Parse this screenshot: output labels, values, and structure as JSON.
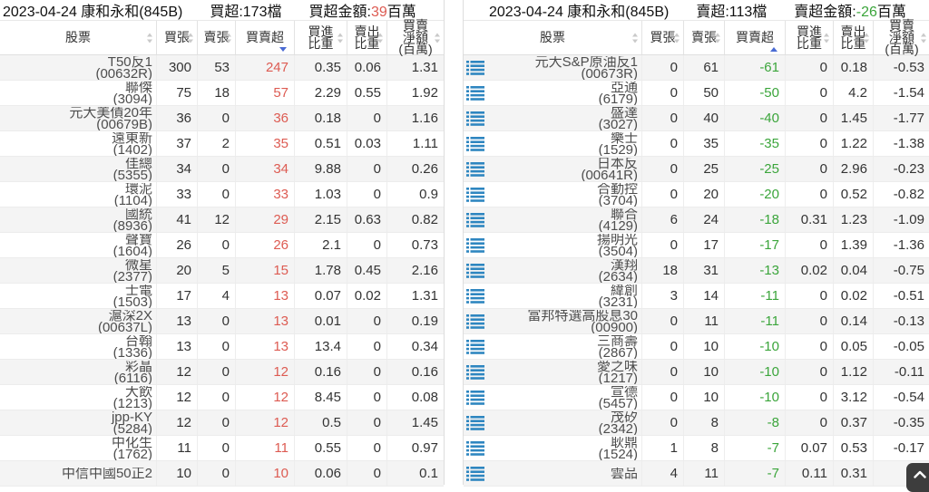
{
  "colors": {
    "positive_red": "#dd5b52",
    "negative_green": "#3ba53b",
    "row_icon_blue": "#2e86c0",
    "active_sort_blue": "#4a6bd4"
  },
  "left": {
    "title": {
      "main": "2023-04-24 康和永和(845B)",
      "count": "買超:173檔",
      "amount_label": "買超金額:",
      "amount_value": "39",
      "amount_unit": "百萬"
    },
    "columns": [
      {
        "label": "股票"
      },
      {
        "label": "買張"
      },
      {
        "label": "賣張"
      },
      {
        "label": "買賣超",
        "sort": "desc"
      },
      {
        "label": "買進\n比重"
      },
      {
        "label": "賣出\n比重"
      },
      {
        "label": "買賣\n淨額\n(百萬)"
      }
    ],
    "rows": [
      {
        "name": "T50反1",
        "code": "(00632R)",
        "buy": "300",
        "sell": "53",
        "net": "247",
        "buy_pct": "0.35",
        "sell_pct": "0.06",
        "net_amt": "1.31"
      },
      {
        "name": "聯傑",
        "code": "(3094)",
        "buy": "75",
        "sell": "18",
        "net": "57",
        "buy_pct": "2.29",
        "sell_pct": "0.55",
        "net_amt": "1.92"
      },
      {
        "name": "元大美債20年",
        "code": "(00679B)",
        "buy": "36",
        "sell": "0",
        "net": "36",
        "buy_pct": "0.18",
        "sell_pct": "0",
        "net_amt": "1.16"
      },
      {
        "name": "遠東新",
        "code": "(1402)",
        "buy": "37",
        "sell": "2",
        "net": "35",
        "buy_pct": "0.51",
        "sell_pct": "0.03",
        "net_amt": "1.11"
      },
      {
        "name": "佳總",
        "code": "(5355)",
        "buy": "34",
        "sell": "0",
        "net": "34",
        "buy_pct": "9.88",
        "sell_pct": "0",
        "net_amt": "0.26"
      },
      {
        "name": "環泥",
        "code": "(1104)",
        "buy": "33",
        "sell": "0",
        "net": "33",
        "buy_pct": "1.03",
        "sell_pct": "0",
        "net_amt": "0.9"
      },
      {
        "name": "國統",
        "code": "(8936)",
        "buy": "41",
        "sell": "12",
        "net": "29",
        "buy_pct": "2.15",
        "sell_pct": "0.63",
        "net_amt": "0.82"
      },
      {
        "name": "聲寶",
        "code": "(1604)",
        "buy": "26",
        "sell": "0",
        "net": "26",
        "buy_pct": "2.1",
        "sell_pct": "0",
        "net_amt": "0.73"
      },
      {
        "name": "微星",
        "code": "(2377)",
        "buy": "20",
        "sell": "5",
        "net": "15",
        "buy_pct": "1.78",
        "sell_pct": "0.45",
        "net_amt": "2.16"
      },
      {
        "name": "士電",
        "code": "(1503)",
        "buy": "17",
        "sell": "4",
        "net": "13",
        "buy_pct": "0.07",
        "sell_pct": "0.02",
        "net_amt": "1.31"
      },
      {
        "name": "滬深2X",
        "code": "(00637L)",
        "buy": "13",
        "sell": "0",
        "net": "13",
        "buy_pct": "0.01",
        "sell_pct": "0",
        "net_amt": "0.19"
      },
      {
        "name": "台翰",
        "code": "(1336)",
        "buy": "13",
        "sell": "0",
        "net": "13",
        "buy_pct": "13.4",
        "sell_pct": "0",
        "net_amt": "0.34"
      },
      {
        "name": "彩晶",
        "code": "(6116)",
        "buy": "12",
        "sell": "0",
        "net": "12",
        "buy_pct": "0.16",
        "sell_pct": "0",
        "net_amt": "0.16"
      },
      {
        "name": "大飲",
        "code": "(1213)",
        "buy": "12",
        "sell": "0",
        "net": "12",
        "buy_pct": "8.45",
        "sell_pct": "0",
        "net_amt": "0.08"
      },
      {
        "name": "jpp-KY",
        "code": "(5284)",
        "buy": "12",
        "sell": "0",
        "net": "12",
        "buy_pct": "0.5",
        "sell_pct": "0",
        "net_amt": "1.45"
      },
      {
        "name": "中化生",
        "code": "(1762)",
        "buy": "11",
        "sell": "0",
        "net": "11",
        "buy_pct": "0.55",
        "sell_pct": "0",
        "net_amt": "0.97"
      },
      {
        "name": "中信中國50正2",
        "code": "",
        "buy": "10",
        "sell": "0",
        "net": "10",
        "buy_pct": "0.06",
        "sell_pct": "0",
        "net_amt": "0.1"
      }
    ]
  },
  "right": {
    "title": {
      "main": "2023-04-24 康和永和(845B)",
      "count": "賣超:113檔",
      "amount_label": "賣超金額:",
      "amount_value": "-26",
      "amount_unit": "百萬"
    },
    "columns": [
      {
        "label": "股票"
      },
      {
        "label": "買張"
      },
      {
        "label": "賣張"
      },
      {
        "label": "買賣超",
        "sort": "asc"
      },
      {
        "label": "買進\n比重"
      },
      {
        "label": "賣出\n比重"
      },
      {
        "label": "買賣\n淨額\n(百萬)"
      }
    ],
    "rows": [
      {
        "name": "元大S&P原油反1",
        "code": "(00673R)",
        "buy": "0",
        "sell": "61",
        "net": "-61",
        "buy_pct": "0",
        "sell_pct": "0.18",
        "net_amt": "-0.53"
      },
      {
        "name": "亞通",
        "code": "(6179)",
        "buy": "0",
        "sell": "50",
        "net": "-50",
        "buy_pct": "0",
        "sell_pct": "4.2",
        "net_amt": "-1.54"
      },
      {
        "name": "盛達",
        "code": "(3027)",
        "buy": "0",
        "sell": "40",
        "net": "-40",
        "buy_pct": "0",
        "sell_pct": "1.45",
        "net_amt": "-1.77"
      },
      {
        "name": "樂士",
        "code": "(1529)",
        "buy": "0",
        "sell": "35",
        "net": "-35",
        "buy_pct": "0",
        "sell_pct": "1.22",
        "net_amt": "-1.38"
      },
      {
        "name": "日本反",
        "code": "(00641R)",
        "buy": "0",
        "sell": "25",
        "net": "-25",
        "buy_pct": "0",
        "sell_pct": "2.96",
        "net_amt": "-0.23"
      },
      {
        "name": "合勤控",
        "code": "(3704)",
        "buy": "0",
        "sell": "20",
        "net": "-20",
        "buy_pct": "0",
        "sell_pct": "0.52",
        "net_amt": "-0.82"
      },
      {
        "name": "聯合",
        "code": "(4129)",
        "buy": "6",
        "sell": "24",
        "net": "-18",
        "buy_pct": "0.31",
        "sell_pct": "1.23",
        "net_amt": "-1.09"
      },
      {
        "name": "揚明光",
        "code": "(3504)",
        "buy": "0",
        "sell": "17",
        "net": "-17",
        "buy_pct": "0",
        "sell_pct": "1.39",
        "net_amt": "-1.36"
      },
      {
        "name": "漢翔",
        "code": "(2634)",
        "buy": "18",
        "sell": "31",
        "net": "-13",
        "buy_pct": "0.02",
        "sell_pct": "0.04",
        "net_amt": "-0.75"
      },
      {
        "name": "緯創",
        "code": "(3231)",
        "buy": "3",
        "sell": "14",
        "net": "-11",
        "buy_pct": "0",
        "sell_pct": "0.02",
        "net_amt": "-0.51"
      },
      {
        "name": "富邦特選高股息30",
        "code": "(00900)",
        "buy": "0",
        "sell": "11",
        "net": "-11",
        "buy_pct": "0",
        "sell_pct": "0.14",
        "net_amt": "-0.13"
      },
      {
        "name": "三商壽",
        "code": "(2867)",
        "buy": "0",
        "sell": "10",
        "net": "-10",
        "buy_pct": "0",
        "sell_pct": "0.05",
        "net_amt": "-0.05"
      },
      {
        "name": "愛之味",
        "code": "(1217)",
        "buy": "0",
        "sell": "10",
        "net": "-10",
        "buy_pct": "0",
        "sell_pct": "1.12",
        "net_amt": "-0.11"
      },
      {
        "name": "宣德",
        "code": "(5457)",
        "buy": "0",
        "sell": "10",
        "net": "-10",
        "buy_pct": "0",
        "sell_pct": "3.12",
        "net_amt": "-0.54"
      },
      {
        "name": "茂矽",
        "code": "(2342)",
        "buy": "0",
        "sell": "8",
        "net": "-8",
        "buy_pct": "0",
        "sell_pct": "0.37",
        "net_amt": "-0.35"
      },
      {
        "name": "耿鼎",
        "code": "(1524)",
        "buy": "1",
        "sell": "8",
        "net": "-7",
        "buy_pct": "0.07",
        "sell_pct": "0.53",
        "net_amt": "-0.17"
      },
      {
        "name": "雲品",
        "code": "",
        "buy": "4",
        "sell": "11",
        "net": "-7",
        "buy_pct": "0.11",
        "sell_pct": "0.31",
        "net_amt": "-0."
      }
    ]
  }
}
